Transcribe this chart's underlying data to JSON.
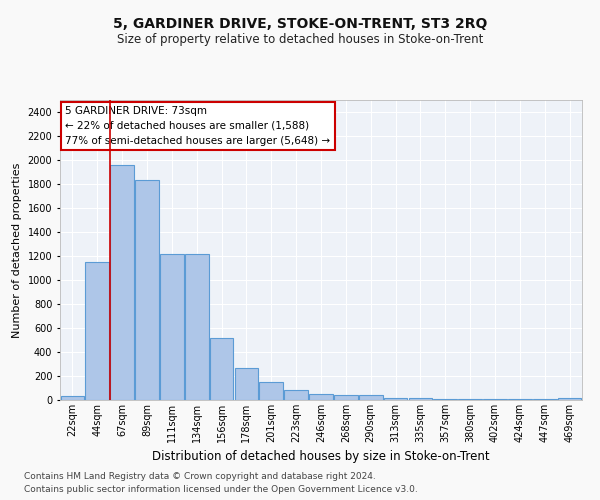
{
  "title": "5, GARDINER DRIVE, STOKE-ON-TRENT, ST3 2RQ",
  "subtitle": "Size of property relative to detached houses in Stoke-on-Trent",
  "xlabel": "Distribution of detached houses by size in Stoke-on-Trent",
  "ylabel": "Number of detached properties",
  "bar_color": "#aec6e8",
  "bar_edge_color": "#5b9bd5",
  "background_color": "#eef2f8",
  "grid_color": "#ffffff",
  "bin_labels": [
    "22sqm",
    "44sqm",
    "67sqm",
    "89sqm",
    "111sqm",
    "134sqm",
    "156sqm",
    "178sqm",
    "201sqm",
    "223sqm",
    "246sqm",
    "268sqm",
    "290sqm",
    "313sqm",
    "335sqm",
    "357sqm",
    "380sqm",
    "402sqm",
    "424sqm",
    "447sqm",
    "469sqm"
  ],
  "bar_values": [
    30,
    1150,
    1960,
    1830,
    1220,
    1220,
    515,
    270,
    150,
    80,
    50,
    45,
    40,
    20,
    15,
    10,
    5,
    5,
    5,
    5,
    20
  ],
  "ylim": [
    0,
    2500
  ],
  "yticks": [
    0,
    200,
    400,
    600,
    800,
    1000,
    1200,
    1400,
    1600,
    1800,
    2000,
    2200,
    2400
  ],
  "annotation_title": "5 GARDINER DRIVE: 73sqm",
  "annotation_line1": "← 22% of detached houses are smaller (1,588)",
  "annotation_line2": "77% of semi-detached houses are larger (5,648) →",
  "vline_color": "#cc0000",
  "annotation_box_color": "#ffffff",
  "annotation_border_color": "#cc0000",
  "footer1": "Contains HM Land Registry data © Crown copyright and database right 2024.",
  "footer2": "Contains public sector information licensed under the Open Government Licence v3.0.",
  "title_fontsize": 10,
  "subtitle_fontsize": 8.5,
  "xlabel_fontsize": 8.5,
  "ylabel_fontsize": 8,
  "tick_fontsize": 7,
  "annotation_fontsize": 7.5,
  "footer_fontsize": 6.5,
  "fig_bg": "#f9f9f9"
}
